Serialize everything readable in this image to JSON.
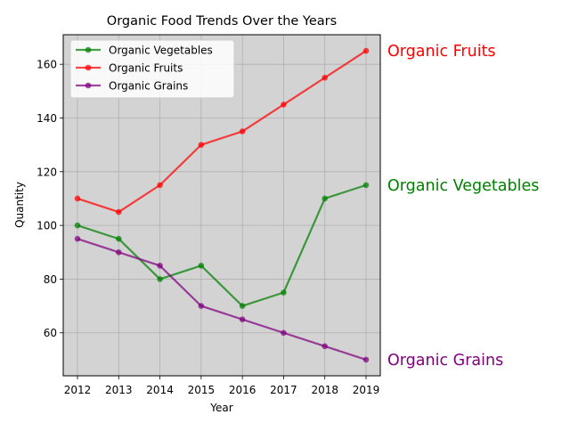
{
  "chart_data": {
    "type": "line",
    "title": "Organic Food Trends Over the Years",
    "xlabel": "Year",
    "ylabel": "Quantity",
    "x": [
      2012,
      2013,
      2014,
      2015,
      2016,
      2017,
      2018,
      2019
    ],
    "xticks": [
      "2012",
      "2013",
      "2014",
      "2015",
      "2016",
      "2017",
      "2018",
      "2019"
    ],
    "yticks": [
      "60",
      "80",
      "100",
      "120",
      "140",
      "160"
    ],
    "ylim": [
      44,
      171
    ],
    "grid": true,
    "plot_background": "#d3d3d3",
    "legend_position": "upper-left",
    "series": [
      {
        "name": "Organic Vegetables",
        "color": "#008000",
        "values": [
          100,
          95,
          80,
          85,
          70,
          75,
          110,
          115
        ]
      },
      {
        "name": "Organic Fruits",
        "color": "#ff0000",
        "values": [
          110,
          105,
          115,
          130,
          135,
          145,
          155,
          165
        ]
      },
      {
        "name": "Organic Grains",
        "color": "#800080",
        "values": [
          95,
          90,
          85,
          70,
          65,
          60,
          55,
          50
        ]
      }
    ],
    "end_labels": [
      "Organic Vegetables",
      "Organic Fruits",
      "Organic Grains"
    ]
  }
}
